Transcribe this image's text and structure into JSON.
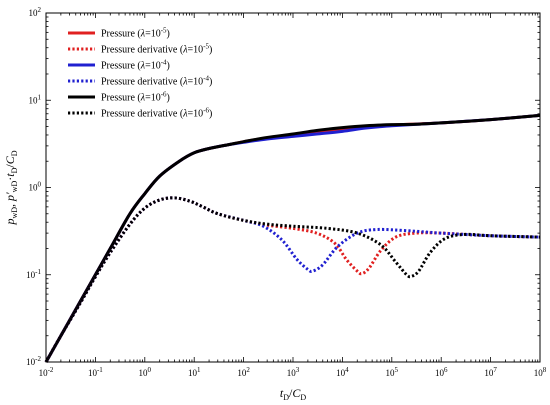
{
  "chart_data": {
    "type": "line",
    "xscale": "log",
    "yscale": "log",
    "xlim": [
      0.01,
      100000000
    ],
    "ylim": [
      0.01,
      100
    ],
    "x_ticks": [
      {
        "value": 0.01,
        "base": "10",
        "exp": "-2"
      },
      {
        "value": 0.1,
        "base": "10",
        "exp": "-1"
      },
      {
        "value": 1,
        "base": "10",
        "exp": "0"
      },
      {
        "value": 10,
        "base": "10",
        "exp": "1"
      },
      {
        "value": 100,
        "base": "10",
        "exp": "2"
      },
      {
        "value": 1000,
        "base": "10",
        "exp": "3"
      },
      {
        "value": 10000,
        "base": "10",
        "exp": "4"
      },
      {
        "value": 100000,
        "base": "10",
        "exp": "5"
      },
      {
        "value": 1000000,
        "base": "10",
        "exp": "6"
      },
      {
        "value": 10000000,
        "base": "10",
        "exp": "7"
      },
      {
        "value": 100000000,
        "base": "10",
        "exp": "8"
      }
    ],
    "y_ticks": [
      {
        "value": 0.01,
        "base": "10",
        "exp": "-2"
      },
      {
        "value": 0.1,
        "base": "10",
        "exp": "-1"
      },
      {
        "value": 1,
        "base": "10",
        "exp": "0"
      },
      {
        "value": 10,
        "base": "10",
        "exp": "1"
      },
      {
        "value": 100,
        "base": "10",
        "exp": "2"
      }
    ],
    "xlabel": {
      "t": "t",
      "t_sub": "D",
      "sep": "/",
      "c": "C",
      "c_sub": "D"
    },
    "ylabel": {
      "p": "p",
      "p_sub": "wD",
      "comma": ", ",
      "pp": "p′",
      "pp_sub": "wD",
      "dot": "·",
      "t": "t",
      "t_sub": "D",
      "sep": "/",
      "c": "C",
      "c_sub": "D"
    },
    "legend_position": "top-left",
    "grid": false,
    "series": [
      {
        "legend_prefix": "Pressure (",
        "legend_lambda": "λ",
        "legend_eq": "=10",
        "legend_exp": "-5",
        "legend_suffix": ")",
        "color": "#e02020",
        "style": "solid",
        "points": [
          [
            0.01,
            0.01
          ],
          [
            0.02,
            0.02
          ],
          [
            0.05,
            0.05
          ],
          [
            0.1,
            0.1
          ],
          [
            0.2,
            0.2
          ],
          [
            0.5,
            0.5
          ],
          [
            1,
            0.85
          ],
          [
            2,
            1.35
          ],
          [
            5,
            2.0
          ],
          [
            10,
            2.5
          ],
          [
            20,
            2.8
          ],
          [
            50,
            3.1
          ],
          [
            100,
            3.35
          ],
          [
            300,
            3.7
          ],
          [
            1000,
            4.0
          ],
          [
            3000,
            4.35
          ],
          [
            10000,
            4.7
          ],
          [
            30000,
            5.0
          ],
          [
            100000,
            5.2
          ],
          [
            1000000,
            5.5
          ],
          [
            10000000,
            6.0
          ],
          [
            100000000,
            6.7
          ]
        ]
      },
      {
        "legend_prefix": "Pressure derivative (",
        "legend_lambda": "λ",
        "legend_eq": "=10",
        "legend_exp": "-5",
        "legend_suffix": ")",
        "color": "#e02020",
        "style": "dotted",
        "points": [
          [
            0.01,
            0.01
          ],
          [
            0.02,
            0.02
          ],
          [
            0.05,
            0.048
          ],
          [
            0.1,
            0.095
          ],
          [
            0.2,
            0.18
          ],
          [
            0.5,
            0.38
          ],
          [
            1,
            0.58
          ],
          [
            2,
            0.72
          ],
          [
            4,
            0.76
          ],
          [
            8,
            0.7
          ],
          [
            15,
            0.6
          ],
          [
            30,
            0.5
          ],
          [
            100,
            0.42
          ],
          [
            300,
            0.37
          ],
          [
            1000,
            0.34
          ],
          [
            3000,
            0.3
          ],
          [
            7000,
            0.23
          ],
          [
            12000,
            0.15
          ],
          [
            20000,
            0.11
          ],
          [
            25000,
            0.103
          ],
          [
            35000,
            0.12
          ],
          [
            60000,
            0.19
          ],
          [
            120000,
            0.27
          ],
          [
            300000,
            0.3
          ],
          [
            1000000,
            0.3
          ],
          [
            10000000,
            0.28
          ],
          [
            100000000,
            0.27
          ]
        ]
      },
      {
        "legend_prefix": "Pressure (",
        "legend_lambda": "λ",
        "legend_eq": "=10",
        "legend_exp": "-4",
        "legend_suffix": ")",
        "color": "#2020d0",
        "style": "solid",
        "points": [
          [
            0.01,
            0.01
          ],
          [
            0.02,
            0.02
          ],
          [
            0.05,
            0.05
          ],
          [
            0.1,
            0.1
          ],
          [
            0.2,
            0.2
          ],
          [
            0.5,
            0.5
          ],
          [
            1,
            0.85
          ],
          [
            2,
            1.35
          ],
          [
            5,
            2.0
          ],
          [
            10,
            2.5
          ],
          [
            20,
            2.8
          ],
          [
            50,
            3.1
          ],
          [
            100,
            3.3
          ],
          [
            300,
            3.6
          ],
          [
            1000,
            3.85
          ],
          [
            3000,
            4.1
          ],
          [
            10000,
            4.4
          ],
          [
            30000,
            4.8
          ],
          [
            100000,
            5.1
          ],
          [
            1000000,
            5.5
          ],
          [
            10000000,
            6.0
          ],
          [
            100000000,
            6.7
          ]
        ]
      },
      {
        "legend_prefix": "Pressure derivative (",
        "legend_lambda": "λ",
        "legend_eq": "=10",
        "legend_exp": "-4",
        "legend_suffix": ")",
        "color": "#2020d0",
        "style": "dotted",
        "points": [
          [
            0.01,
            0.01
          ],
          [
            0.02,
            0.02
          ],
          [
            0.05,
            0.048
          ],
          [
            0.1,
            0.095
          ],
          [
            0.2,
            0.18
          ],
          [
            0.5,
            0.38
          ],
          [
            1,
            0.58
          ],
          [
            2,
            0.72
          ],
          [
            4,
            0.76
          ],
          [
            8,
            0.7
          ],
          [
            15,
            0.6
          ],
          [
            30,
            0.5
          ],
          [
            100,
            0.42
          ],
          [
            250,
            0.36
          ],
          [
            600,
            0.25
          ],
          [
            1200,
            0.15
          ],
          [
            2000,
            0.115
          ],
          [
            2500,
            0.11
          ],
          [
            4000,
            0.13
          ],
          [
            8000,
            0.21
          ],
          [
            20000,
            0.3
          ],
          [
            50000,
            0.33
          ],
          [
            200000,
            0.32
          ],
          [
            1000000,
            0.3
          ],
          [
            10000000,
            0.28
          ],
          [
            100000000,
            0.27
          ]
        ]
      },
      {
        "legend_prefix": "Pressure (",
        "legend_lambda": "λ",
        "legend_eq": "=10",
        "legend_exp": "-6",
        "legend_suffix": ")",
        "color": "#000000",
        "style": "solid",
        "points": [
          [
            0.01,
            0.01
          ],
          [
            0.02,
            0.02
          ],
          [
            0.05,
            0.05
          ],
          [
            0.1,
            0.1
          ],
          [
            0.2,
            0.2
          ],
          [
            0.5,
            0.5
          ],
          [
            1,
            0.85
          ],
          [
            2,
            1.35
          ],
          [
            5,
            2.0
          ],
          [
            10,
            2.5
          ],
          [
            20,
            2.8
          ],
          [
            50,
            3.1
          ],
          [
            100,
            3.35
          ],
          [
            300,
            3.75
          ],
          [
            1000,
            4.1
          ],
          [
            3000,
            4.5
          ],
          [
            10000,
            4.85
          ],
          [
            30000,
            5.1
          ],
          [
            100000,
            5.25
          ],
          [
            300000,
            5.3
          ],
          [
            1000000,
            5.5
          ],
          [
            10000000,
            6.0
          ],
          [
            100000000,
            6.7
          ]
        ]
      },
      {
        "legend_prefix": "Pressure derivative (",
        "legend_lambda": "λ",
        "legend_eq": "=10",
        "legend_exp": "-6",
        "legend_suffix": ")",
        "color": "#000000",
        "style": "dotted",
        "points": [
          [
            0.01,
            0.01
          ],
          [
            0.02,
            0.02
          ],
          [
            0.05,
            0.048
          ],
          [
            0.1,
            0.095
          ],
          [
            0.2,
            0.18
          ],
          [
            0.5,
            0.38
          ],
          [
            1,
            0.58
          ],
          [
            2,
            0.72
          ],
          [
            4,
            0.76
          ],
          [
            8,
            0.7
          ],
          [
            15,
            0.6
          ],
          [
            30,
            0.5
          ],
          [
            100,
            0.42
          ],
          [
            300,
            0.38
          ],
          [
            1000,
            0.36
          ],
          [
            5000,
            0.34
          ],
          [
            20000,
            0.3
          ],
          [
            60000,
            0.22
          ],
          [
            120000,
            0.14
          ],
          [
            200000,
            0.1
          ],
          [
            250000,
            0.096
          ],
          [
            350000,
            0.11
          ],
          [
            600000,
            0.18
          ],
          [
            1200000,
            0.26
          ],
          [
            3000000,
            0.29
          ],
          [
            10000000,
            0.28
          ],
          [
            100000000,
            0.27
          ]
        ]
      }
    ]
  }
}
